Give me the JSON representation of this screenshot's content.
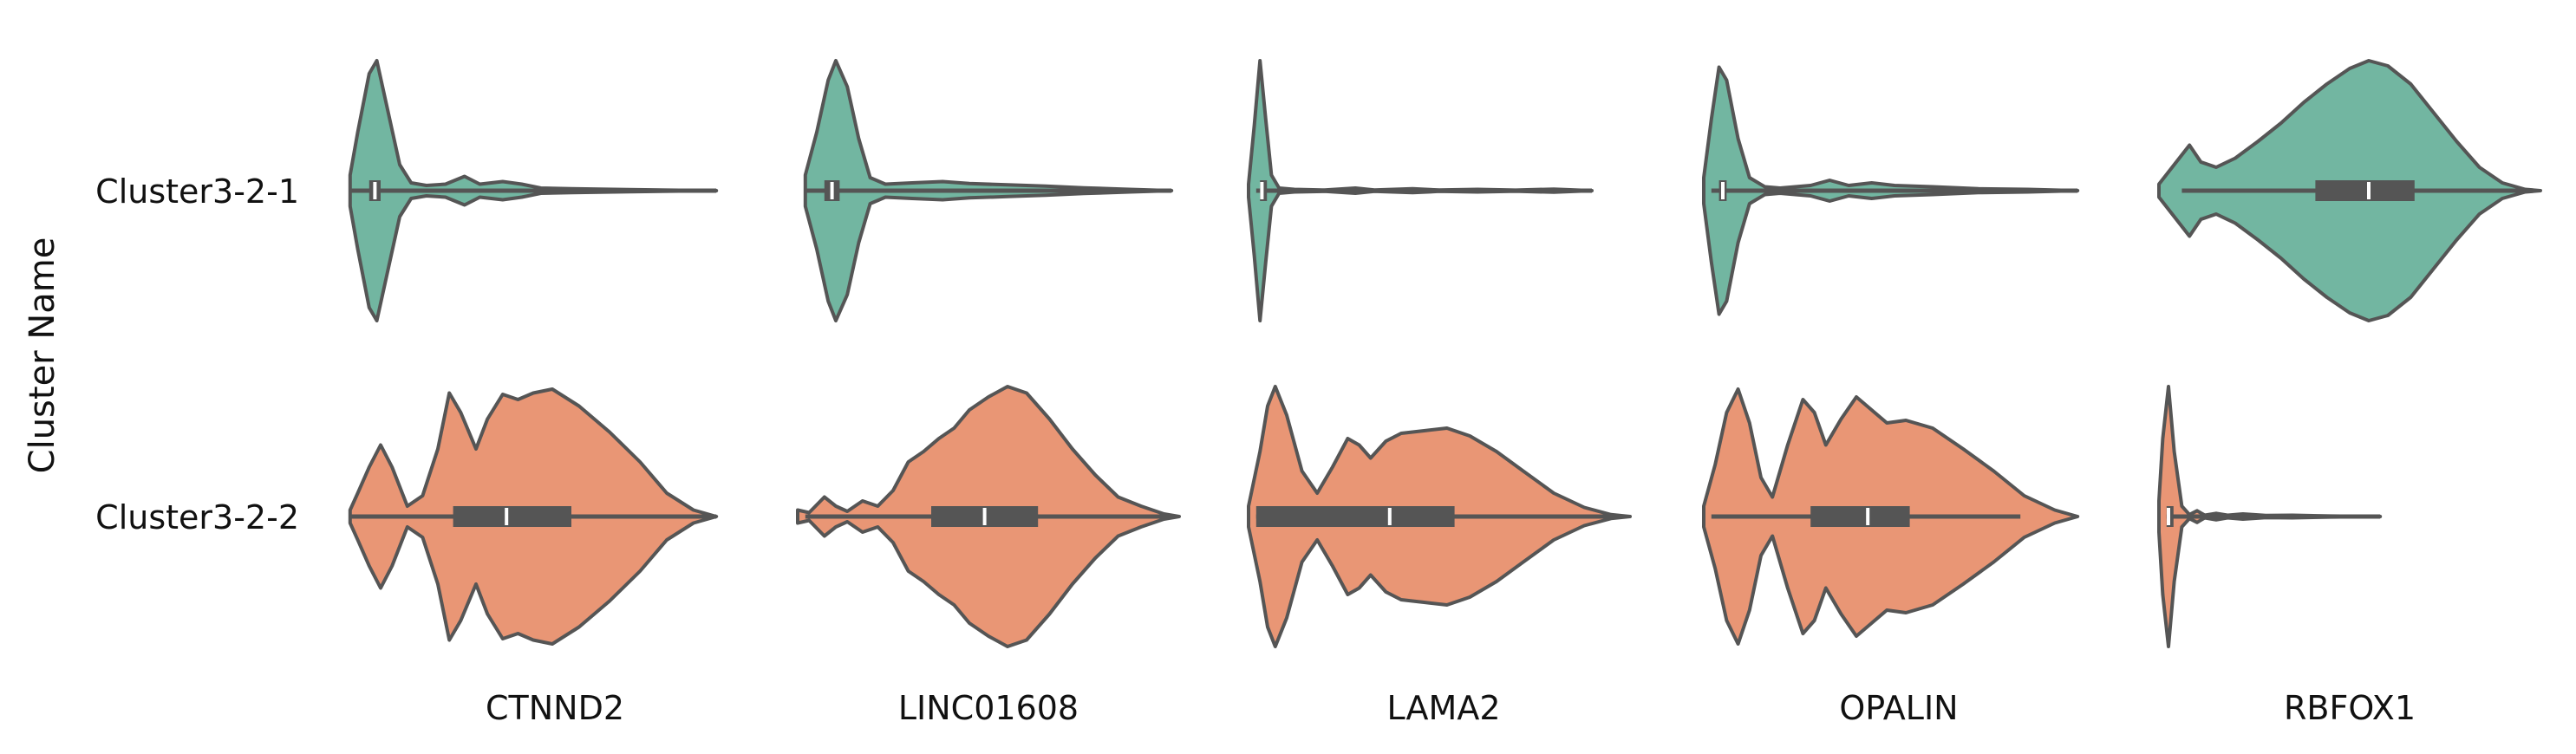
{
  "chart_data": {
    "type": "violin",
    "title": "",
    "ylabel": "Cluster Name",
    "xlabel": "",
    "categories": [
      "Cluster3-2-1",
      "Cluster3-2-2"
    ],
    "genes": [
      "CTNND2",
      "LINC01608",
      "LAMA2",
      "OPALIN",
      "RBFOX1"
    ],
    "colors": {
      "Cluster3-2-1": "#72b6a1",
      "Cluster3-2-2": "#e99675",
      "box": "#555555",
      "median": "#ffffff",
      "outline": "#555555"
    },
    "grid": false,
    "legend": "none",
    "value_range": [
      0,
      1
    ],
    "violins": [
      {
        "gene": "CTNND2",
        "cluster": "Cluster3-2-1",
        "min": 0.02,
        "max": 0.98,
        "q1": 0.07,
        "median": 0.085,
        "q3": 0.1,
        "density": [
          [
            0.02,
            0.12
          ],
          [
            0.04,
            0.45
          ],
          [
            0.07,
            0.9
          ],
          [
            0.09,
            1.0
          ],
          [
            0.12,
            0.6
          ],
          [
            0.15,
            0.2
          ],
          [
            0.18,
            0.06
          ],
          [
            0.22,
            0.04
          ],
          [
            0.27,
            0.05
          ],
          [
            0.32,
            0.11
          ],
          [
            0.36,
            0.05
          ],
          [
            0.42,
            0.07
          ],
          [
            0.47,
            0.05
          ],
          [
            0.52,
            0.02
          ],
          [
            0.6,
            0.015
          ],
          [
            0.75,
            0.008
          ],
          [
            0.98,
            0.0
          ]
        ]
      },
      {
        "gene": "CTNND2",
        "cluster": "Cluster3-2-2",
        "min": 0.02,
        "max": 0.98,
        "q1": 0.29,
        "median": 0.43,
        "q3": 0.6,
        "density": [
          [
            0.02,
            0.05
          ],
          [
            0.04,
            0.18
          ],
          [
            0.07,
            0.38
          ],
          [
            0.1,
            0.55
          ],
          [
            0.13,
            0.38
          ],
          [
            0.17,
            0.08
          ],
          [
            0.21,
            0.16
          ],
          [
            0.25,
            0.52
          ],
          [
            0.28,
            0.95
          ],
          [
            0.31,
            0.8
          ],
          [
            0.35,
            0.52
          ],
          [
            0.38,
            0.75
          ],
          [
            0.42,
            0.94
          ],
          [
            0.46,
            0.9
          ],
          [
            0.5,
            0.95
          ],
          [
            0.55,
            0.98
          ],
          [
            0.62,
            0.85
          ],
          [
            0.7,
            0.65
          ],
          [
            0.78,
            0.42
          ],
          [
            0.85,
            0.18
          ],
          [
            0.92,
            0.05
          ],
          [
            0.98,
            0.0
          ]
        ]
      },
      {
        "gene": "LINC01608",
        "cluster": "Cluster3-2-1",
        "min": 0.02,
        "max": 0.98,
        "q1": 0.07,
        "median": 0.09,
        "q3": 0.11,
        "density": [
          [
            0.02,
            0.12
          ],
          [
            0.05,
            0.45
          ],
          [
            0.08,
            0.85
          ],
          [
            0.1,
            1.0
          ],
          [
            0.13,
            0.8
          ],
          [
            0.16,
            0.4
          ],
          [
            0.19,
            0.1
          ],
          [
            0.23,
            0.05
          ],
          [
            0.3,
            0.06
          ],
          [
            0.38,
            0.07
          ],
          [
            0.45,
            0.055
          ],
          [
            0.55,
            0.045
          ],
          [
            0.65,
            0.035
          ],
          [
            0.75,
            0.022
          ],
          [
            0.87,
            0.01
          ],
          [
            0.98,
            0.0
          ]
        ]
      },
      {
        "gene": "LINC01608",
        "cluster": "Cluster3-2-2",
        "min": 0.02,
        "max": 0.98,
        "q1": 0.35,
        "median": 0.49,
        "q3": 0.63,
        "density": [
          [
            0.0,
            0.05
          ],
          [
            0.03,
            0.03
          ],
          [
            0.07,
            0.15
          ],
          [
            0.1,
            0.08
          ],
          [
            0.13,
            0.04
          ],
          [
            0.17,
            0.12
          ],
          [
            0.21,
            0.08
          ],
          [
            0.25,
            0.2
          ],
          [
            0.29,
            0.42
          ],
          [
            0.33,
            0.5
          ],
          [
            0.37,
            0.6
          ],
          [
            0.41,
            0.68
          ],
          [
            0.45,
            0.82
          ],
          [
            0.5,
            0.92
          ],
          [
            0.55,
            1.0
          ],
          [
            0.6,
            0.95
          ],
          [
            0.66,
            0.75
          ],
          [
            0.72,
            0.52
          ],
          [
            0.78,
            0.32
          ],
          [
            0.84,
            0.15
          ],
          [
            0.9,
            0.08
          ],
          [
            0.96,
            0.02
          ],
          [
            1.0,
            0.0
          ]
        ]
      },
      {
        "gene": "LAMA2",
        "cluster": "Cluster3-2-1",
        "min": 0.02,
        "max": 0.9,
        "q1": 0.03,
        "median": 0.035,
        "q3": 0.04,
        "density": [
          [
            0.0,
            0.05
          ],
          [
            0.015,
            0.5
          ],
          [
            0.03,
            1.0
          ],
          [
            0.045,
            0.55
          ],
          [
            0.06,
            0.12
          ],
          [
            0.08,
            0.02
          ],
          [
            0.12,
            0.01
          ],
          [
            0.2,
            0.005
          ],
          [
            0.28,
            0.02
          ],
          [
            0.33,
            0.005
          ],
          [
            0.43,
            0.015
          ],
          [
            0.5,
            0.005
          ],
          [
            0.6,
            0.01
          ],
          [
            0.7,
            0.004
          ],
          [
            0.8,
            0.012
          ],
          [
            0.9,
            0.0
          ]
        ]
      },
      {
        "gene": "LAMA2",
        "cluster": "Cluster3-2-2",
        "min": 0.02,
        "max": 0.98,
        "q1": 0.02,
        "median": 0.37,
        "q3": 0.54,
        "density": [
          [
            0.0,
            0.08
          ],
          [
            0.03,
            0.5
          ],
          [
            0.05,
            0.85
          ],
          [
            0.07,
            1.0
          ],
          [
            0.1,
            0.78
          ],
          [
            0.14,
            0.35
          ],
          [
            0.18,
            0.18
          ],
          [
            0.22,
            0.38
          ],
          [
            0.26,
            0.6
          ],
          [
            0.29,
            0.55
          ],
          [
            0.32,
            0.45
          ],
          [
            0.36,
            0.58
          ],
          [
            0.4,
            0.64
          ],
          [
            0.46,
            0.66
          ],
          [
            0.52,
            0.68
          ],
          [
            0.58,
            0.62
          ],
          [
            0.65,
            0.5
          ],
          [
            0.72,
            0.35
          ],
          [
            0.8,
            0.18
          ],
          [
            0.88,
            0.07
          ],
          [
            0.95,
            0.015
          ],
          [
            1.0,
            0.0
          ]
        ]
      },
      {
        "gene": "OPALIN",
        "cluster": "Cluster3-2-1",
        "min": 0.02,
        "max": 0.98,
        "q1": 0.04,
        "median": 0.05,
        "q3": 0.06,
        "density": [
          [
            0.0,
            0.1
          ],
          [
            0.02,
            0.55
          ],
          [
            0.04,
            0.95
          ],
          [
            0.06,
            0.85
          ],
          [
            0.09,
            0.4
          ],
          [
            0.12,
            0.1
          ],
          [
            0.16,
            0.03
          ],
          [
            0.2,
            0.02
          ],
          [
            0.28,
            0.04
          ],
          [
            0.33,
            0.08
          ],
          [
            0.38,
            0.04
          ],
          [
            0.44,
            0.06
          ],
          [
            0.5,
            0.04
          ],
          [
            0.6,
            0.03
          ],
          [
            0.72,
            0.015
          ],
          [
            0.85,
            0.01
          ],
          [
            0.98,
            0.0
          ]
        ]
      },
      {
        "gene": "OPALIN",
        "cluster": "Cluster3-2-2",
        "min": 0.02,
        "max": 0.83,
        "q1": 0.28,
        "median": 0.43,
        "q3": 0.54,
        "density": [
          [
            0.0,
            0.08
          ],
          [
            0.03,
            0.4
          ],
          [
            0.06,
            0.8
          ],
          [
            0.09,
            0.98
          ],
          [
            0.12,
            0.72
          ],
          [
            0.15,
            0.3
          ],
          [
            0.18,
            0.15
          ],
          [
            0.22,
            0.55
          ],
          [
            0.26,
            0.9
          ],
          [
            0.29,
            0.8
          ],
          [
            0.32,
            0.55
          ],
          [
            0.36,
            0.75
          ],
          [
            0.4,
            0.92
          ],
          [
            0.44,
            0.82
          ],
          [
            0.48,
            0.72
          ],
          [
            0.53,
            0.74
          ],
          [
            0.6,
            0.68
          ],
          [
            0.68,
            0.52
          ],
          [
            0.76,
            0.35
          ],
          [
            0.84,
            0.16
          ],
          [
            0.92,
            0.05
          ],
          [
            0.98,
            0.0
          ]
        ]
      },
      {
        "gene": "RBFOX1",
        "cluster": "Cluster3-2-1",
        "min": 0.06,
        "max": 0.96,
        "q1": 0.41,
        "median": 0.55,
        "q3": 0.67,
        "density": [
          [
            0.0,
            0.05
          ],
          [
            0.04,
            0.2
          ],
          [
            0.08,
            0.35
          ],
          [
            0.11,
            0.22
          ],
          [
            0.15,
            0.18
          ],
          [
            0.2,
            0.25
          ],
          [
            0.26,
            0.38
          ],
          [
            0.32,
            0.52
          ],
          [
            0.38,
            0.68
          ],
          [
            0.44,
            0.82
          ],
          [
            0.5,
            0.94
          ],
          [
            0.55,
            1.0
          ],
          [
            0.6,
            0.96
          ],
          [
            0.66,
            0.82
          ],
          [
            0.72,
            0.6
          ],
          [
            0.78,
            0.38
          ],
          [
            0.84,
            0.18
          ],
          [
            0.9,
            0.06
          ],
          [
            0.96,
            0.01
          ],
          [
            1.0,
            0.0
          ]
        ]
      },
      {
        "gene": "RBFOX1",
        "cluster": "Cluster3-2-2",
        "min": 0.02,
        "max": 0.58,
        "q1": 0.02,
        "median": 0.025,
        "q3": 0.03,
        "density": [
          [
            0.0,
            0.12
          ],
          [
            0.01,
            0.6
          ],
          [
            0.025,
            1.0
          ],
          [
            0.04,
            0.5
          ],
          [
            0.06,
            0.08
          ],
          [
            0.08,
            0.015
          ],
          [
            0.1,
            0.045
          ],
          [
            0.12,
            0.01
          ],
          [
            0.15,
            0.025
          ],
          [
            0.18,
            0.01
          ],
          [
            0.22,
            0.02
          ],
          [
            0.28,
            0.008
          ],
          [
            0.35,
            0.01
          ],
          [
            0.45,
            0.004
          ],
          [
            0.58,
            0.0
          ]
        ]
      }
    ]
  }
}
